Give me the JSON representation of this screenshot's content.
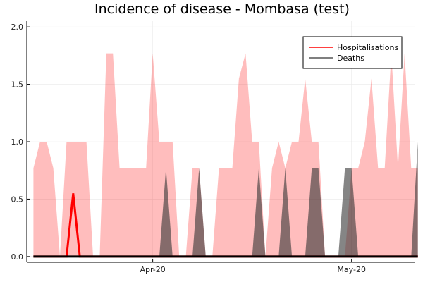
{
  "chart_data": {
    "type": "area",
    "title": "Incidence of disease - Mombasa (test)",
    "xlabel": "",
    "ylabel": "",
    "ylim": [
      -0.05,
      2.05
    ],
    "x_range_days": [
      0,
      58.5
    ],
    "x_ticks": [
      {
        "day": 19,
        "label": "Apr-20"
      },
      {
        "day": 49,
        "label": "May-20"
      }
    ],
    "y_ticks": [
      {
        "value": 0.0,
        "label": "0.0"
      },
      {
        "value": 0.5,
        "label": "0.5"
      },
      {
        "value": 1.0,
        "label": "1.0"
      },
      {
        "value": 1.5,
        "label": "1.5"
      },
      {
        "value": 2.0,
        "label": "2.0"
      }
    ],
    "grid": true,
    "legend_position": "top-right",
    "series": [
      {
        "name": "Hospitalisations",
        "color": "#ff0000",
        "line_x": [
          1,
          6,
          7,
          8,
          59
        ],
        "line_y": [
          0,
          0,
          0.55,
          0,
          0
        ],
        "band_x": [
          1,
          2,
          3,
          4,
          5,
          6,
          7,
          8,
          9,
          10,
          11,
          12,
          13,
          14,
          15,
          16,
          17,
          18,
          19,
          20,
          21,
          22,
          23,
          24,
          25,
          26,
          27,
          28,
          29,
          30,
          31,
          32,
          33,
          34,
          35,
          36,
          37,
          38,
          39,
          40,
          41,
          42,
          43,
          44,
          45,
          46,
          47,
          48,
          49,
          50,
          51,
          52,
          53,
          54,
          55,
          56,
          57,
          58,
          59
        ],
        "band_y": [
          0.77,
          1.0,
          1.0,
          0.77,
          0,
          1.0,
          1.0,
          1.0,
          1.0,
          0,
          0,
          1.77,
          1.77,
          0.77,
          0.77,
          0.77,
          0.77,
          0.77,
          1.77,
          1.0,
          1.0,
          1.0,
          0,
          0,
          0.77,
          0.77,
          0,
          0,
          0.77,
          0.77,
          0.77,
          1.55,
          1.77,
          1.0,
          1.0,
          0,
          0.77,
          1.0,
          0.77,
          1.0,
          1.0,
          1.55,
          1.0,
          1.0,
          0,
          0,
          0,
          0,
          0.77,
          0.77,
          1.0,
          1.55,
          0.77,
          0.77,
          1.77,
          0.77,
          1.77,
          0.77,
          0.77
        ]
      },
      {
        "name": "Deaths",
        "color": "#555555",
        "line_x": [
          1,
          59
        ],
        "line_y": [
          0,
          0
        ],
        "band_peaks": [
          {
            "x": [
              20,
              21,
              22
            ],
            "y": [
              0,
              0.77,
              0
            ]
          },
          {
            "x": [
              25,
              26,
              27
            ],
            "y": [
              0,
              0.77,
              0
            ]
          },
          {
            "x": [
              34,
              35,
              36
            ],
            "y": [
              0,
              0.77,
              0
            ]
          },
          {
            "x": [
              38,
              39,
              40
            ],
            "y": [
              0,
              0.77,
              0
            ]
          },
          {
            "x": [
              42,
              43,
              44,
              45
            ],
            "y": [
              0,
              0.77,
              0.77,
              0
            ]
          },
          {
            "x": [
              47,
              48,
              49,
              50
            ],
            "y": [
              0,
              0.77,
              0.77,
              0
            ]
          },
          {
            "x": [
              58,
              59
            ],
            "y": [
              0,
              1.0
            ]
          }
        ]
      }
    ]
  }
}
